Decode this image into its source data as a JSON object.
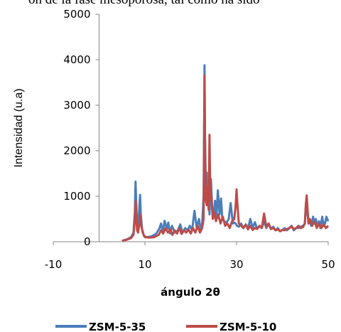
{
  "header_text": "ón de la fase mesoporosa, tal como ha sido",
  "chart_data": {
    "type": "line",
    "title": "",
    "xlabel": "ángulo 2θ",
    "ylabel": "Intensidad (u.a)",
    "xlim": [
      -10,
      50
    ],
    "ylim": [
      0,
      5000
    ],
    "xticks": [
      "-10",
      "10",
      "30",
      "50"
    ],
    "yticks": [
      "0",
      "1000",
      "2000",
      "3000",
      "4000",
      "5000"
    ],
    "grid": false,
    "legend_position": "bottom",
    "series": [
      {
        "name": "ZSM-5-35",
        "color": "#4a7ebb",
        "x": [
          5,
          6,
          7,
          7.5,
          7.8,
          7.95,
          8.1,
          8.3,
          8.5,
          8.8,
          8.95,
          9.1,
          9.4,
          9.8,
          10.5,
          11.5,
          12.5,
          13.2,
          13.5,
          13.9,
          14.3,
          14.8,
          15.1,
          15.5,
          15.9,
          16.5,
          17.2,
          17.7,
          18.2,
          18.8,
          19.3,
          19.8,
          20.3,
          20.8,
          21.3,
          21.8,
          22.2,
          22.5,
          22.8,
          23.0,
          23.1,
          23.3,
          23.5,
          23.7,
          23.9,
          24.1,
          24.4,
          24.7,
          25.0,
          25.3,
          25.6,
          25.9,
          26.3,
          26.6,
          26.9,
          27.3,
          27.8,
          28.3,
          28.7,
          29.2,
          29.5,
          29.8,
          30.1,
          30.5,
          31,
          31.5,
          32,
          32.5,
          33,
          33.5,
          34,
          34.5,
          35,
          35.5,
          36,
          36.5,
          37,
          37.5,
          38,
          38.5,
          39,
          39.5,
          40,
          40.5,
          41,
          41.5,
          42,
          42.5,
          43,
          43.5,
          44,
          44.5,
          44.9,
          45.1,
          45.3,
          45.5,
          45.7,
          46,
          46.3,
          46.7,
          47,
          47.3,
          47.6,
          48,
          48.3,
          48.7,
          49,
          49.3,
          49.6,
          50
        ],
        "y": [
          20,
          50,
          100,
          200,
          650,
          1320,
          900,
          350,
          250,
          800,
          1030,
          600,
          280,
          120,
          100,
          120,
          180,
          300,
          400,
          220,
          460,
          280,
          420,
          180,
          350,
          200,
          250,
          380,
          200,
          300,
          250,
          350,
          250,
          680,
          300,
          500,
          250,
          400,
          1000,
          3880,
          2500,
          1000,
          1520,
          800,
          1300,
          600,
          1380,
          700,
          600,
          900,
          500,
          1130,
          600,
          950,
          500,
          450,
          420,
          500,
          850,
          400,
          420,
          400,
          350,
          330,
          400,
          300,
          380,
          300,
          500,
          300,
          430,
          280,
          350,
          300,
          450,
          300,
          400,
          280,
          330,
          250,
          300,
          230,
          260,
          300,
          250,
          300,
          350,
          250,
          300,
          300,
          330,
          350,
          400,
          750,
          960,
          600,
          400,
          450,
          350,
          550,
          400,
          500,
          350,
          450,
          300,
          550,
          350,
          400,
          550,
          450
        ]
      },
      {
        "name": "ZSM-5-10",
        "color": "#be4b48",
        "x": [
          5,
          6,
          7,
          7.5,
          7.8,
          8.0,
          8.1,
          8.3,
          8.5,
          8.8,
          9.0,
          9.2,
          9.5,
          10,
          11,
          12,
          13,
          13.5,
          14,
          14.5,
          15,
          15.5,
          16,
          16.5,
          17,
          17.5,
          18,
          18.5,
          19,
          19.5,
          20,
          20.5,
          21,
          21.5,
          22,
          22.5,
          22.8,
          23.0,
          23.1,
          23.3,
          23.5,
          23.7,
          23.9,
          24.1,
          24.3,
          24.5,
          24.8,
          25.1,
          25.5,
          26,
          26.5,
          27,
          27.5,
          28,
          28.5,
          29,
          29.5,
          29.8,
          30.0,
          30.2,
          30.5,
          31,
          31.5,
          32,
          32.5,
          33,
          33.5,
          34,
          34.5,
          35,
          35.5,
          36,
          36.5,
          37,
          37.5,
          38,
          38.5,
          39,
          39.5,
          40,
          40.5,
          41,
          41.5,
          42,
          42.5,
          43,
          43.5,
          44,
          44.5,
          44.9,
          45.1,
          45.3,
          45.5,
          45.7,
          46,
          46.5,
          47,
          47.5,
          48,
          48.5,
          49,
          49.5,
          50
        ],
        "y": [
          20,
          40,
          80,
          150,
          450,
          900,
          600,
          250,
          200,
          400,
          600,
          350,
          200,
          100,
          90,
          100,
          150,
          250,
          180,
          300,
          200,
          280,
          150,
          250,
          180,
          300,
          170,
          250,
          200,
          270,
          180,
          300,
          200,
          350,
          200,
          300,
          500,
          3650,
          2300,
          900,
          800,
          1200,
          700,
          2350,
          900,
          1000,
          500,
          650,
          450,
          600,
          400,
          550,
          350,
          400,
          300,
          450,
          500,
          800,
          1150,
          800,
          400,
          350,
          300,
          380,
          270,
          350,
          260,
          300,
          280,
          350,
          300,
          620,
          330,
          400,
          280,
          300,
          250,
          270,
          230,
          260,
          250,
          280,
          300,
          330,
          280,
          300,
          350,
          300,
          320,
          400,
          800,
          1020,
          700,
          400,
          500,
          350,
          450,
          300,
          400,
          300,
          380,
          300,
          350
        ]
      }
    ]
  }
}
